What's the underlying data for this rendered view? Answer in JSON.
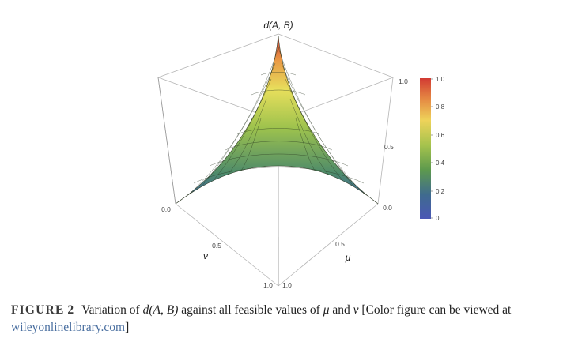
{
  "figure": {
    "z_label": "d(A, B)",
    "x_label": "ν",
    "y_label": "μ",
    "axis_ticks": {
      "x": [
        "0.0",
        "0.5",
        "1.0"
      ],
      "y": [
        "0.0",
        "0.5",
        "1.0"
      ],
      "z": [
        "0.5",
        "1.0"
      ]
    },
    "colorbar": {
      "ticks": [
        "1.0",
        "0.8",
        "0.6",
        "0.4",
        "0.2",
        "0"
      ],
      "colors": [
        "#d23b33",
        "#e58a43",
        "#eed35a",
        "#a4c24d",
        "#5e9a4d",
        "#3f6b8f",
        "#4a57b5"
      ]
    }
  },
  "caption": {
    "label": "FIGURE",
    "number": "2",
    "text_1": "Variation of ",
    "math_1": "d(A, B)",
    "text_2": " against all feasible values of ",
    "math_2": "μ",
    "text_3": " and ",
    "math_3": "ν",
    "text_4": " [Color figure can be viewed at ",
    "link": "wileyonlinelibrary.com",
    "text_5": "]"
  }
}
